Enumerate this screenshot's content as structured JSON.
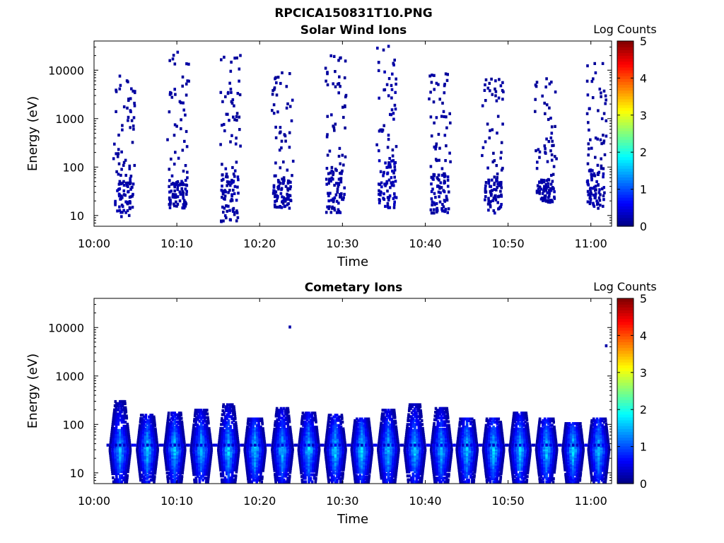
{
  "figure_title": "RPCICA150831T10.PNG",
  "colorscale": {
    "label": "Log Counts",
    "min": 0,
    "max": 5,
    "ticks": [
      "0",
      "1",
      "2",
      "3",
      "4",
      "5"
    ]
  },
  "chart_data": [
    {
      "type": "heatmap",
      "title": "Solar Wind Ions",
      "xlabel": "Time",
      "ylabel": "Energy (eV)",
      "x_range": [
        "10:00",
        "11:02"
      ],
      "x_tick_labels": [
        "10:00",
        "10:10",
        "10:20",
        "10:30",
        "10:40",
        "10:50",
        "11:00"
      ],
      "y_scale": "log",
      "y_range_eV": [
        6,
        40000
      ],
      "y_tick_labels": [
        "10",
        "100",
        "1000",
        "10000"
      ],
      "colorbar_label": "Log Counts",
      "description_of_marks": "sparse scatter of low counts (~0-0.5 log counts) in bursts every ~6 min",
      "bursts": [
        {
          "t_min": 3.5,
          "e_core_eV": [
            10,
            100
          ],
          "e_sparse_max_eV": 10000,
          "level": 0.2
        },
        {
          "t_min": 10.0,
          "e_core_eV": [
            15,
            60
          ],
          "e_sparse_max_eV": 27000,
          "level": 0.2
        },
        {
          "t_min": 16.3,
          "e_core_eV": [
            8,
            100
          ],
          "e_sparse_max_eV": 27000,
          "level": 0.2
        },
        {
          "t_min": 22.6,
          "e_core_eV": [
            15,
            60
          ],
          "e_sparse_max_eV": 10000,
          "level": 0.2
        },
        {
          "t_min": 29.0,
          "e_core_eV": [
            12,
            100
          ],
          "e_sparse_max_eV": 25000,
          "level": 0.2
        },
        {
          "t_min": 35.3,
          "e_core_eV": [
            15,
            150
          ],
          "e_sparse_max_eV": 35000,
          "level": 0.25
        },
        {
          "t_min": 41.6,
          "e_core_eV": [
            12,
            80
          ],
          "e_sparse_max_eV": 10000,
          "level": 0.2
        },
        {
          "t_min": 48.0,
          "e_core_eV": [
            12,
            60
          ],
          "e_sparse_max_eV": 8000,
          "level": 0.2
        },
        {
          "t_min": 54.4,
          "e_core_eV": [
            20,
            60
          ],
          "e_sparse_max_eV": 8000,
          "level": 0.2
        },
        {
          "t_min": 60.5,
          "e_core_eV": [
            15,
            100
          ],
          "e_sparse_max_eV": 15000,
          "level": 0.2
        }
      ]
    },
    {
      "type": "heatmap",
      "title": "Cometary Ions",
      "xlabel": "Time",
      "ylabel": "Energy (eV)",
      "x_range": [
        "10:00",
        "11:02"
      ],
      "x_tick_labels": [
        "10:00",
        "10:10",
        "10:20",
        "10:30",
        "10:40",
        "10:50",
        "11:00"
      ],
      "y_scale": "log",
      "y_range_eV": [
        6,
        40000
      ],
      "y_tick_labels": [
        "10",
        "100",
        "1000",
        "10000"
      ],
      "colorbar_label": "Log Counts",
      "description_of_marks": "periodic bursts every ~3 min, core near 30-40 eV reaching ~1.8 log counts",
      "bursts": [
        {
          "t_min": 3.0,
          "e_top_eV": 350,
          "peak_level": 1.7
        },
        {
          "t_min": 6.3,
          "e_top_eV": 180,
          "peak_level": 1.8
        },
        {
          "t_min": 9.6,
          "e_top_eV": 200,
          "peak_level": 1.8
        },
        {
          "t_min": 12.8,
          "e_top_eV": 230,
          "peak_level": 1.7
        },
        {
          "t_min": 16.1,
          "e_top_eV": 300,
          "peak_level": 1.8
        },
        {
          "t_min": 19.3,
          "e_top_eV": 150,
          "peak_level": 1.8
        },
        {
          "t_min": 22.6,
          "e_top_eV": 250,
          "peak_level": 1.7
        },
        {
          "t_min": 25.8,
          "e_top_eV": 200,
          "peak_level": 1.8
        },
        {
          "t_min": 29.0,
          "e_top_eV": 180,
          "peak_level": 1.8
        },
        {
          "t_min": 32.2,
          "e_top_eV": 150,
          "peak_level": 1.9
        },
        {
          "t_min": 35.4,
          "e_top_eV": 230,
          "peak_level": 1.8
        },
        {
          "t_min": 38.6,
          "e_top_eV": 300,
          "peak_level": 1.8
        },
        {
          "t_min": 41.8,
          "e_top_eV": 250,
          "peak_level": 1.7
        },
        {
          "t_min": 44.9,
          "e_top_eV": 150,
          "peak_level": 1.8
        },
        {
          "t_min": 48.1,
          "e_top_eV": 150,
          "peak_level": 1.8
        },
        {
          "t_min": 51.3,
          "e_top_eV": 200,
          "peak_level": 1.8
        },
        {
          "t_min": 54.5,
          "e_top_eV": 150,
          "peak_level": 1.8
        },
        {
          "t_min": 57.7,
          "e_top_eV": 120,
          "peak_level": 1.8
        },
        {
          "t_min": 60.8,
          "e_top_eV": 150,
          "peak_level": 1.8
        }
      ],
      "isolated_points": [
        {
          "t_min": 23.5,
          "e_eV": 11000,
          "level": 0.2
        },
        {
          "t_min": 61.7,
          "e_eV": 4500,
          "level": 0.2
        }
      ]
    }
  ]
}
